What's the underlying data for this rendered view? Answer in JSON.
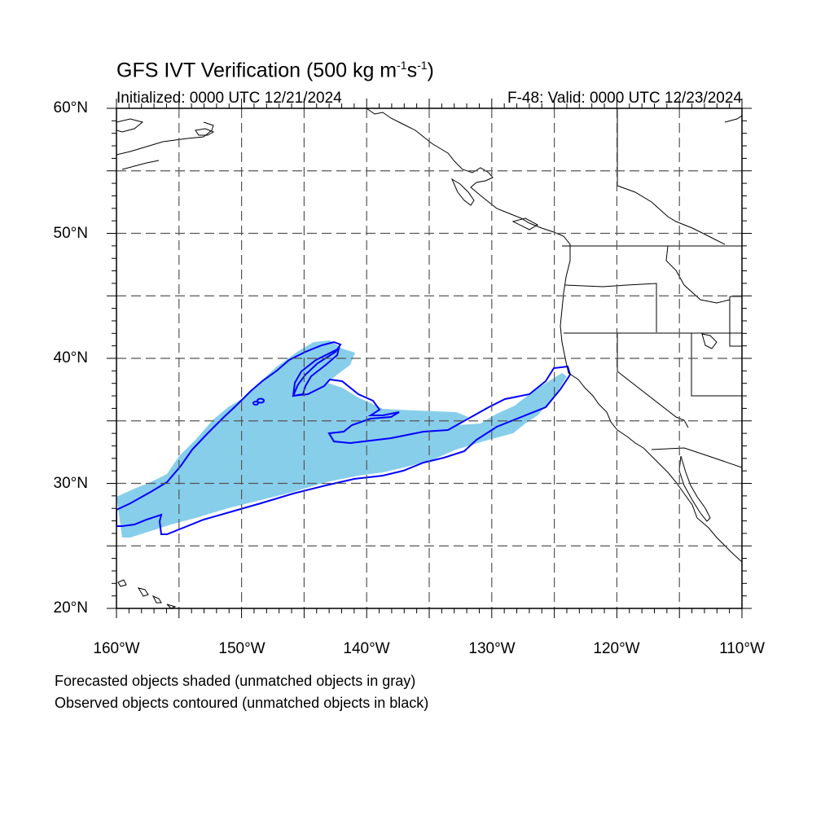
{
  "title": {
    "main": "GFS IVT Verification (500 kg m",
    "exp1": "-1",
    "mid": "s",
    "exp2": "-1",
    "close": ")"
  },
  "initialized": "Initialized: 0000 UTC 12/21/2024",
  "valid": "F-48: Valid: 0000 UTC 12/23/2024",
  "lat_labels": [
    "60°N",
    "50°N",
    "40°N",
    "30°N",
    "20°N"
  ],
  "lon_labels": [
    "160°W",
    "150°W",
    "140°W",
    "130°W",
    "120°W",
    "110°W"
  ],
  "notes": [
    "Forecasted objects shaded (unmatched objects in gray)",
    "Observed objects contoured (unmatched objects in black)"
  ],
  "map": {
    "extent": {
      "lon": [
        -160,
        -110
      ],
      "lat": [
        20,
        60
      ]
    },
    "grid_interval_deg": 5,
    "colors": {
      "forecast_fill": "#87ceeb",
      "observed_contour": "#0000ff",
      "coastline": "#000000",
      "grid": "#555555"
    }
  }
}
